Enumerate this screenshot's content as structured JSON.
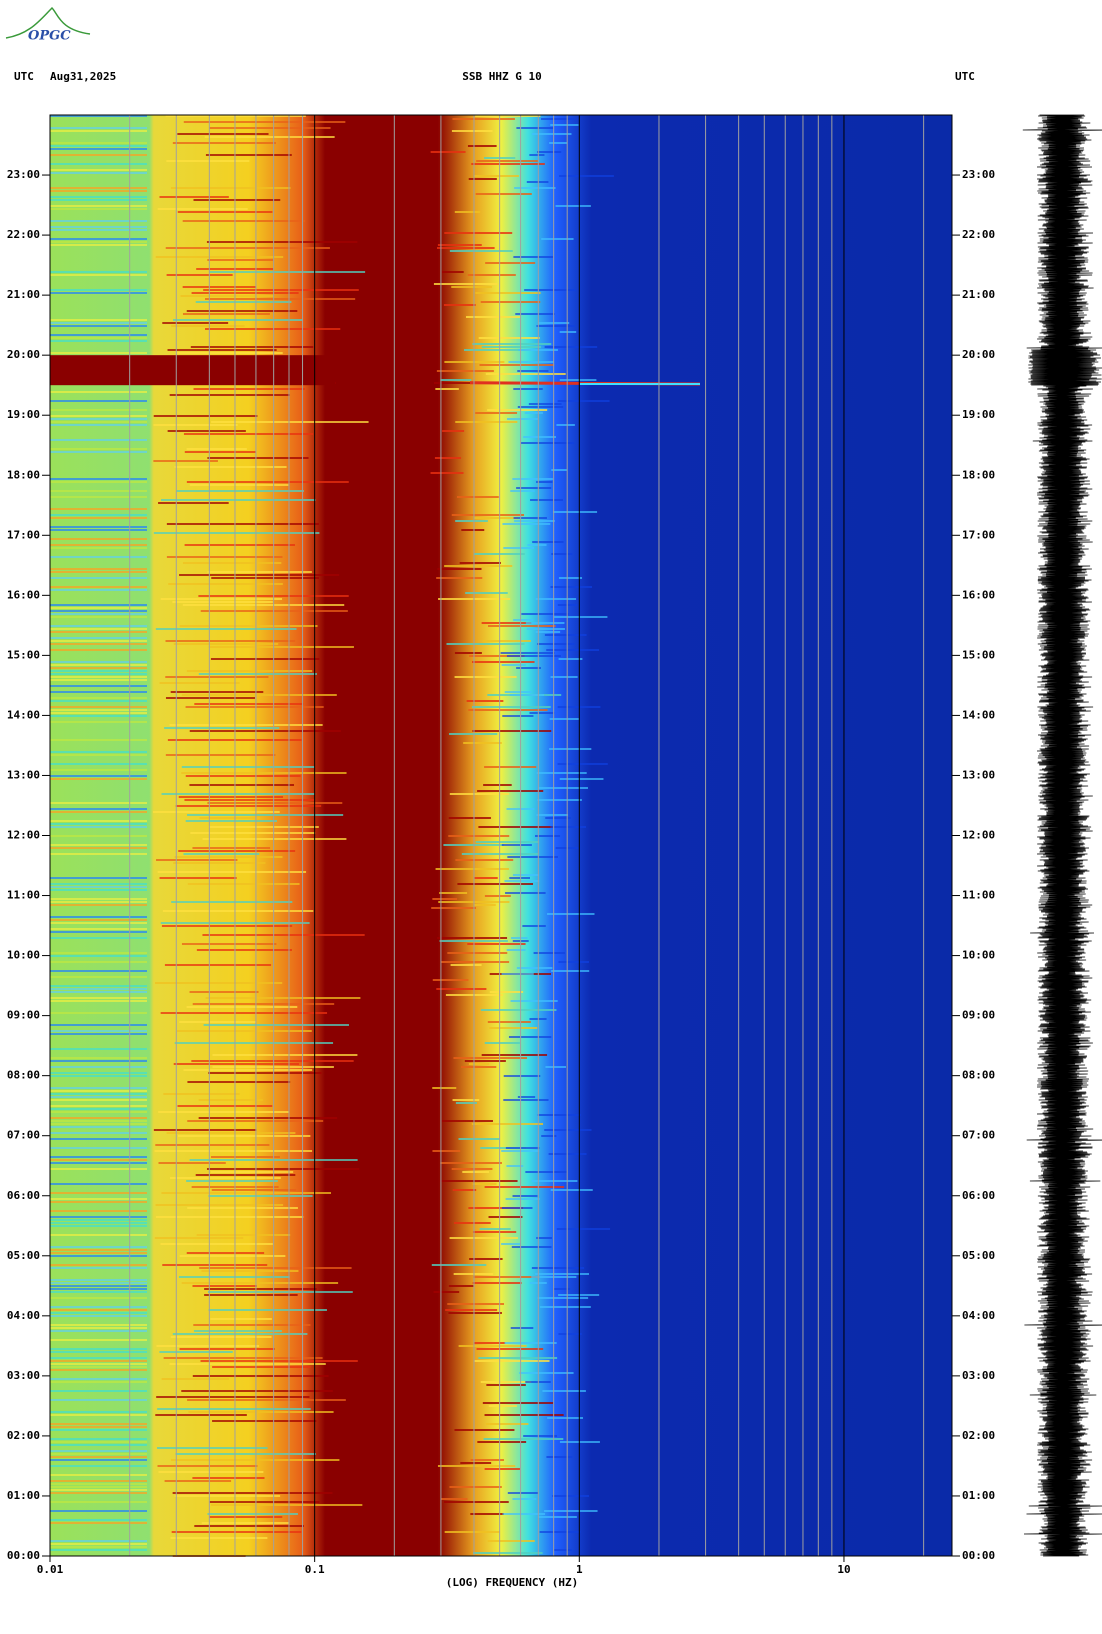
{
  "logo": "OPGC",
  "chart_data": {
    "type": "spectrogram",
    "header_left_zone": "UTC",
    "header_date": "Aug31,2025",
    "title": "SSB HHZ G 10",
    "header_right_zone": "UTC",
    "x_label": "(LOG) FREQUENCY (HZ)",
    "x_scale": "log",
    "xlim": [
      0.01,
      25.6
    ],
    "xticks": [
      0.01,
      0.1,
      1,
      10
    ],
    "ylim": [
      0,
      24
    ],
    "yticks": [
      {
        "value": 0,
        "label": "00:00"
      },
      {
        "value": 1,
        "label": "01:00"
      },
      {
        "value": 2,
        "label": "02:00"
      },
      {
        "value": 3,
        "label": "03:00"
      },
      {
        "value": 4,
        "label": "04:00"
      },
      {
        "value": 5,
        "label": "05:00"
      },
      {
        "value": 6,
        "label": "06:00"
      },
      {
        "value": 7,
        "label": "07:00"
      },
      {
        "value": 8,
        "label": "08:00"
      },
      {
        "value": 9,
        "label": "09:00"
      },
      {
        "value": 10,
        "label": "10:00"
      },
      {
        "value": 11,
        "label": "11:00"
      },
      {
        "value": 12,
        "label": "12:00"
      },
      {
        "value": 13,
        "label": "13:00"
      },
      {
        "value": 14,
        "label": "14:00"
      },
      {
        "value": 15,
        "label": "15:00"
      },
      {
        "value": 16,
        "label": "16:00"
      },
      {
        "value": 17,
        "label": "17:00"
      },
      {
        "value": 18,
        "label": "18:00"
      },
      {
        "value": 19,
        "label": "19:00"
      },
      {
        "value": 20,
        "label": "20:00"
      },
      {
        "value": 21,
        "label": "21:00"
      },
      {
        "value": 22,
        "label": "22:00"
      },
      {
        "value": 23,
        "label": "23:00"
      }
    ]
  }
}
